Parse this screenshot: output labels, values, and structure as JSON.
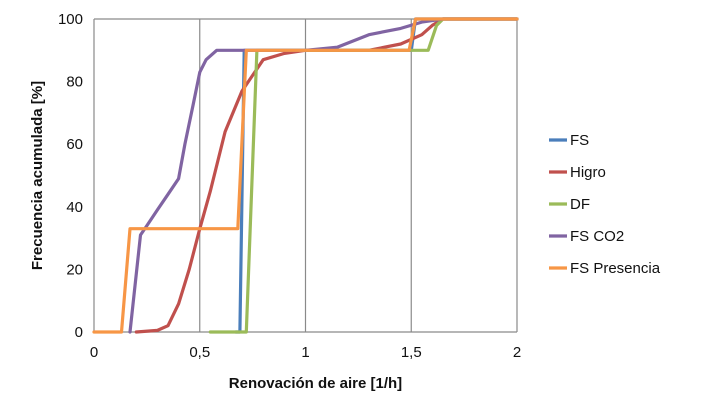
{
  "chart_data": {
    "type": "line",
    "title": "",
    "xlabel": "Renovación de aire [1/h]",
    "ylabel": "Frecuencia acumulada [%]",
    "xlim": [
      0,
      2
    ],
    "ylim": [
      0,
      100
    ],
    "x_ticks": [
      0,
      0.5,
      1,
      1.5,
      2
    ],
    "x_tick_labels": [
      "0",
      "0,5",
      "1",
      "1,5",
      "2"
    ],
    "y_ticks": [
      0,
      20,
      40,
      60,
      80,
      100
    ],
    "y_tick_labels": [
      "0",
      "20",
      "40",
      "60",
      "80",
      "100"
    ],
    "grid": "vertical",
    "legend_position": "right",
    "series": [
      {
        "name": "FS",
        "color": "#4a7ebb",
        "x": [
          0.67,
          0.69,
          0.71,
          0.73,
          0.8,
          1.0,
          1.5,
          1.52,
          2.0
        ],
        "y": [
          0,
          0,
          90,
          90,
          90,
          90,
          90,
          100,
          100
        ]
      },
      {
        "name": "Higro",
        "color": "#c0504d",
        "x": [
          0.2,
          0.3,
          0.35,
          0.4,
          0.45,
          0.5,
          0.55,
          0.62,
          0.7,
          0.8,
          0.9,
          1.0,
          1.3,
          1.45,
          1.55,
          1.6,
          1.65,
          2.0
        ],
        "y": [
          0,
          0.5,
          2,
          9,
          20,
          33,
          45,
          64,
          77,
          87,
          89,
          90,
          90,
          92,
          95,
          98,
          100,
          100
        ]
      },
      {
        "name": "DF",
        "color": "#9bbb59",
        "x": [
          0.55,
          0.72,
          0.77,
          0.8,
          1.0,
          1.3,
          1.58,
          1.62,
          1.65,
          2.0
        ],
        "y": [
          0,
          0,
          90,
          90,
          90,
          90,
          90,
          98,
          100,
          100
        ]
      },
      {
        "name": "FS CO2",
        "color": "#8064a2",
        "x": [
          0.17,
          0.22,
          0.25,
          0.3,
          0.35,
          0.4,
          0.43,
          0.47,
          0.5,
          0.53,
          0.58,
          0.62,
          0.73,
          0.8,
          1.0,
          1.15,
          1.3,
          1.45,
          1.55,
          1.65,
          2.0
        ],
        "y": [
          0,
          31,
          34,
          39,
          44,
          49,
          60,
          73,
          83,
          87,
          90,
          90,
          90,
          90,
          90,
          91,
          95,
          97,
          99,
          100,
          100
        ]
      },
      {
        "name": "FS Presencia",
        "color": "#f79646",
        "x": [
          0,
          0.13,
          0.17,
          0.3,
          0.68,
          0.72,
          1.0,
          1.49,
          1.52,
          1.6,
          2.0
        ],
        "y": [
          0,
          0,
          33,
          33,
          33,
          90,
          90,
          90,
          100,
          100,
          100
        ]
      }
    ]
  }
}
